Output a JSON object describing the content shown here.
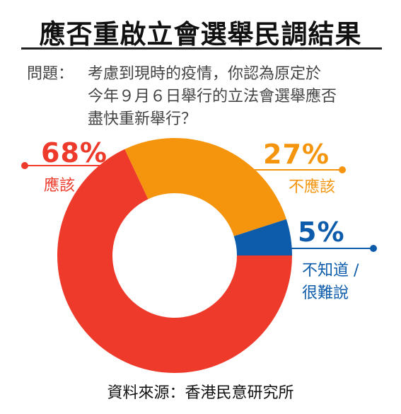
{
  "title": "應否重啟立會選舉民調結果",
  "question": {
    "label": "問題：",
    "lines": [
      "考慮到現時的疫情，你認為原定於",
      "今年９月６日舉行的立法會選舉應否",
      "盡快重新舉行？"
    ]
  },
  "colors": {
    "should": "#ee3a2b",
    "should_not": "#f5950e",
    "unknown": "#0c5cab"
  },
  "chart_data": {
    "type": "pie",
    "categories": [
      "應該",
      "不應該",
      "不知道／很難說"
    ],
    "values": [
      68,
      27,
      5
    ],
    "labels": [
      {
        "pct": "68%",
        "text": [
          "應該"
        ]
      },
      {
        "pct": "27%",
        "text": [
          "不應該"
        ]
      },
      {
        "pct": "5%",
        "text": [
          "不知道 /",
          "很難說"
        ]
      }
    ],
    "donut": true
  },
  "source": "資料來源：香港民意研究所"
}
